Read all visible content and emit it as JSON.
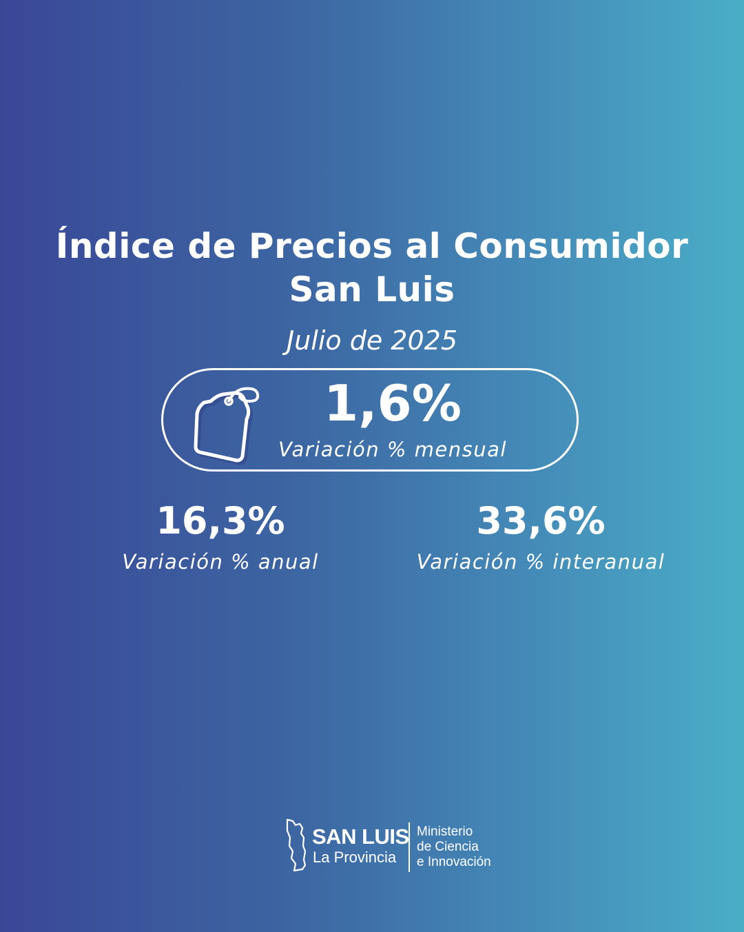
{
  "title": {
    "line1": "Índice de Precios al Consumidor",
    "line2": "San Luis"
  },
  "period": "Julio de 2025",
  "monthly": {
    "value": "1,6%",
    "label": "Variación % mensual",
    "icon": "price-tag-icon"
  },
  "annual": {
    "value": "16,3%",
    "label": "Variación % anual"
  },
  "interannual": {
    "value": "33,6%",
    "label": "Variación % interanual"
  },
  "logo": {
    "brand": "SAN LUIS",
    "sub": "La Provincia",
    "ministry_line1": "Ministerio",
    "ministry_line2": "de Ciencia",
    "ministry_line3": "e Innovación",
    "icon": "province-map-icon"
  },
  "colors": {
    "gradient_start": "#394797",
    "gradient_end": "#4aaec7",
    "text": "#ffffff"
  }
}
